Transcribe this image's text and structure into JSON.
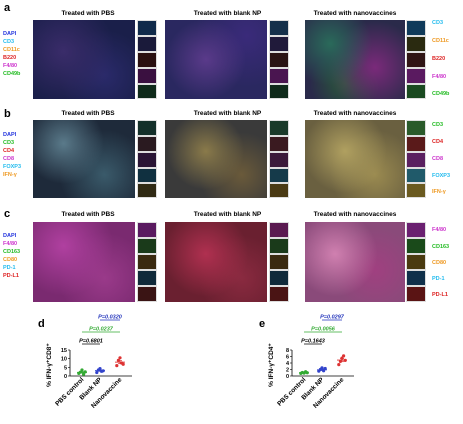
{
  "panels": {
    "a": {
      "letter": "a",
      "titles": [
        "Treated with PBS",
        "Treated with blank NP",
        "Treated with nanovaccines"
      ],
      "legend": [
        {
          "text": "DAPI",
          "color": "#2233dd"
        },
        {
          "text": "CD3",
          "color": "#22bbee"
        },
        {
          "text": "CD11c",
          "color": "#ee9922"
        },
        {
          "text": "B220",
          "color": "#dd2222"
        },
        {
          "text": "F4/80",
          "color": "#cc33cc"
        },
        {
          "text": "CD49b",
          "color": "#22bb22"
        }
      ],
      "channels": [
        {
          "text": "CD3",
          "color": "#22bbee"
        },
        {
          "text": "CD11c",
          "color": "#ee9922"
        },
        {
          "text": "B220",
          "color": "#dd2222"
        },
        {
          "text": "F4/80",
          "color": "#cc33cc"
        },
        {
          "text": "CD49b",
          "color": "#22bb22"
        }
      ]
    },
    "b": {
      "letter": "b",
      "titles": [
        "Treated with PBS",
        "Treated with blank NP",
        "Treated with nanovaccines"
      ],
      "legend": [
        {
          "text": "DAPI",
          "color": "#2233dd"
        },
        {
          "text": "CD3",
          "color": "#22bb22"
        },
        {
          "text": "CD4",
          "color": "#dd2222"
        },
        {
          "text": "CD8",
          "color": "#cc33cc"
        },
        {
          "text": "FOXP3",
          "color": "#22bbee"
        },
        {
          "text": "IFN-γ",
          "color": "#ee9922"
        }
      ],
      "channels": [
        {
          "text": "CD3",
          "color": "#22bb22"
        },
        {
          "text": "CD4",
          "color": "#dd2222"
        },
        {
          "text": "CD8",
          "color": "#cc33cc"
        },
        {
          "text": "FOXP3",
          "color": "#22bbee"
        },
        {
          "text": "IFN-γ",
          "color": "#ee9922"
        }
      ]
    },
    "c": {
      "letter": "c",
      "titles": [
        "Treated with PBS",
        "Treated with blank NP",
        "Treated with nanovaccines"
      ],
      "legend": [
        {
          "text": "DAPI",
          "color": "#2233dd"
        },
        {
          "text": "F4/80",
          "color": "#cc33cc"
        },
        {
          "text": "CD163",
          "color": "#22bb22"
        },
        {
          "text": "CD80",
          "color": "#ee9922"
        },
        {
          "text": "PD-1",
          "color": "#22bbee"
        },
        {
          "text": "PD-L1",
          "color": "#dd2222"
        }
      ],
      "channels": [
        {
          "text": "F4/80",
          "color": "#cc33cc"
        },
        {
          "text": "CD163",
          "color": "#22bb22"
        },
        {
          "text": "CD80",
          "color": "#ee9922"
        },
        {
          "text": "PD-1",
          "color": "#22bbee"
        },
        {
          "text": "PD-L1",
          "color": "#dd2222"
        }
      ]
    }
  },
  "chart_data": [
    {
      "type": "scatter",
      "panel": "d",
      "ylabel": "% IFN-γ⁺CD8⁺",
      "ylim": [
        0,
        15
      ],
      "yticks": [
        "0",
        "5",
        "10",
        "15"
      ],
      "categories": [
        "PBS control",
        "Blank NP",
        "Nanovaccine"
      ],
      "category_colors": [
        "#33aa33",
        "#3344cc",
        "#dd3333"
      ],
      "points": [
        [
          1.5,
          2.2,
          3.5,
          1.0,
          2.4
        ],
        [
          2.0,
          3.5,
          4.3,
          2.7,
          3.0
        ],
        [
          6.0,
          9.0,
          10.5,
          7.5,
          6.8
        ]
      ],
      "means": [
        2.1,
        3.1,
        8.0
      ],
      "sems": [
        0.4,
        0.4,
        0.9
      ],
      "comparisons": [
        {
          "label": "P=0.6801",
          "color": "#000000",
          "from": 0,
          "to": 1
        },
        {
          "label": "P=0.0237",
          "color": "#33aa33",
          "from": 0,
          "to": 2
        },
        {
          "label": "P=0.0320",
          "color": "#2233bb",
          "from": 1,
          "to": 2
        }
      ]
    },
    {
      "type": "scatter",
      "panel": "e",
      "ylabel": "% IFN-γ⁺CD4⁺",
      "ylim": [
        0,
        8
      ],
      "yticks": [
        "0",
        "2",
        "4",
        "6",
        "8"
      ],
      "categories": [
        "PBS control",
        "Blank NP",
        "Nanovaccine"
      ],
      "category_colors": [
        "#33aa33",
        "#3344cc",
        "#dd3333"
      ],
      "points": [
        [
          0.8,
          1.1,
          0.9,
          1.3,
          1.0
        ],
        [
          1.5,
          2.0,
          2.5,
          1.6,
          2.3
        ],
        [
          3.5,
          4.5,
          5.5,
          6.2,
          4.8
        ]
      ],
      "means": [
        1.0,
        1.9,
        4.9
      ],
      "sems": [
        0.15,
        0.2,
        0.5
      ],
      "comparisons": [
        {
          "label": "P=0.1643",
          "color": "#000000",
          "from": 0,
          "to": 1
        },
        {
          "label": "P=0.0056",
          "color": "#33aa33",
          "from": 0,
          "to": 2
        },
        {
          "label": "P=0.0297",
          "color": "#2233bb",
          "from": 1,
          "to": 2
        }
      ]
    }
  ]
}
